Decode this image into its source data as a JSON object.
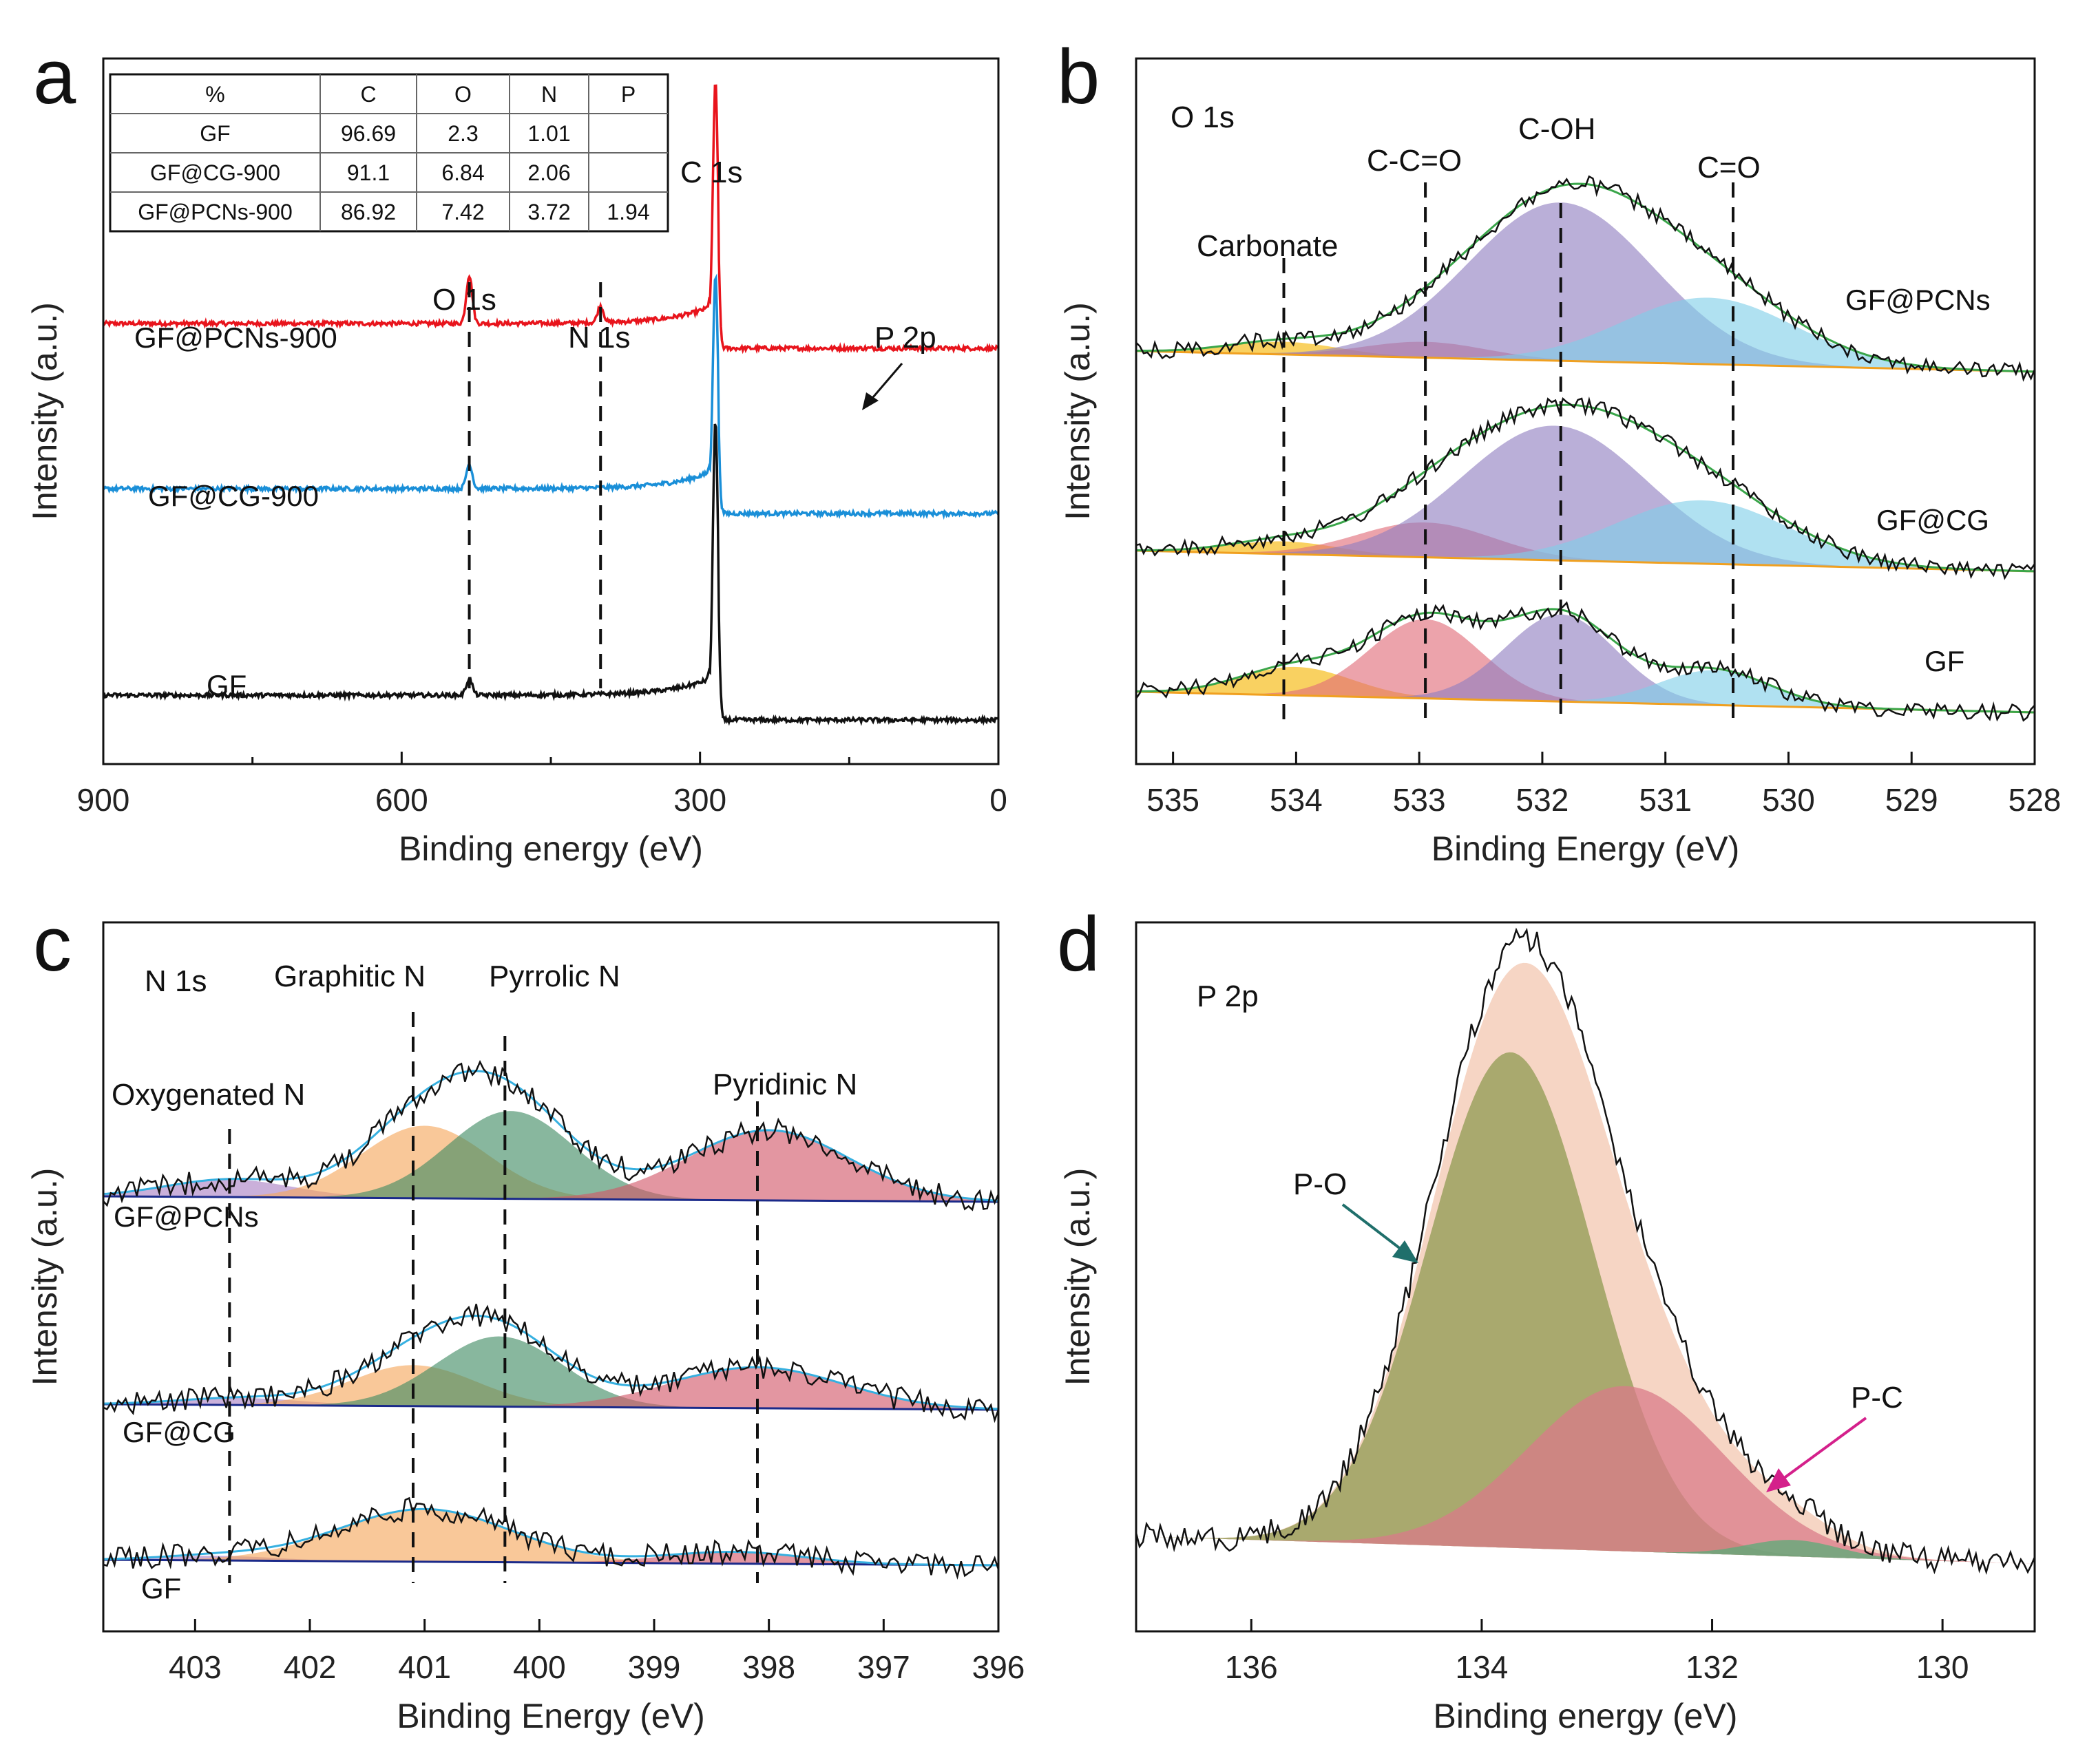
{
  "chart_data": [
    {
      "panel": "a",
      "type": "line",
      "title": "",
      "xlabel": "Binding energy (eV)",
      "ylabel": "Intensity (a.u.)",
      "xlim": [
        900,
        0
      ],
      "x_ticks": [
        "900",
        "600",
        "300",
        "0"
      ],
      "x_tick_values": [
        900,
        600,
        300,
        0
      ],
      "series": [
        {
          "name": "GF@PCNs-900",
          "color": "#e8141c",
          "baseline": 3.0,
          "peaks": [
            {
              "x": 532,
              "h": 0.35,
              "w": 3
            },
            {
              "x": 400,
              "h": 0.12,
              "w": 3
            },
            {
              "x": 284.5,
              "h": 1.75,
              "w": 2.5
            }
          ]
        },
        {
          "name": "GF@CG-900",
          "color": "#1a8fd8",
          "baseline": 1.8,
          "peaks": [
            {
              "x": 532,
              "h": 0.18,
              "w": 3
            },
            {
              "x": 284.5,
              "h": 1.55,
              "w": 2.5
            }
          ]
        },
        {
          "name": "GF",
          "color": "#111111",
          "baseline": 0.3,
          "peaks": [
            {
              "x": 532,
              "h": 0.12,
              "w": 3
            },
            {
              "x": 284.5,
              "h": 2.0,
              "w": 2.5
            }
          ]
        }
      ],
      "peak_labels": [
        "O 1s",
        "N 1s",
        "C 1s",
        "P 2p"
      ],
      "reference_lines_x": [
        532,
        400
      ],
      "table": {
        "headers": [
          "%",
          "C",
          "O",
          "N",
          "P"
        ],
        "rows": [
          [
            "GF",
            "96.69",
            "2.3",
            "1.01",
            ""
          ],
          [
            "GF@CG-900",
            "91.1",
            "6.84",
            "2.06",
            ""
          ],
          [
            "GF@PCNs-900",
            "86.92",
            "7.42",
            "3.72",
            "1.94"
          ]
        ]
      }
    },
    {
      "panel": "b",
      "type": "area",
      "title": "O 1s",
      "xlabel": "Binding Energy (eV)",
      "ylabel": "Intensity (a.u.)",
      "xlim": [
        535.3,
        528
      ],
      "x_ticks": [
        "535",
        "534",
        "533",
        "532",
        "531",
        "530",
        "529",
        "528"
      ],
      "x_tick_values": [
        535,
        534,
        533,
        532,
        531,
        530,
        529,
        528
      ],
      "components": [
        "Carbonate",
        "C-C=O",
        "C-OH",
        "C=O"
      ],
      "component_colors": [
        "#f5b400",
        "#e06a78",
        "#8f7ec0",
        "#7fcfe8"
      ],
      "reference_lines_x": [
        534.1,
        532.95,
        531.85,
        530.45
      ],
      "series": [
        {
          "name": "GF@PCNs",
          "peaks": [
            {
              "center": 534.1,
              "height": 0.08,
              "sigma": 0.45
            },
            {
              "center": 532.95,
              "height": 0.1,
              "sigma": 0.5
            },
            {
              "center": 531.85,
              "height": 1.0,
              "sigma": 0.75
            },
            {
              "center": 530.65,
              "height": 0.42,
              "sigma": 0.7
            }
          ]
        },
        {
          "name": "GF@CG",
          "peaks": [
            {
              "center": 534.1,
              "height": 0.08,
              "sigma": 0.45
            },
            {
              "center": 532.95,
              "height": 0.22,
              "sigma": 0.55
            },
            {
              "center": 531.9,
              "height": 0.85,
              "sigma": 0.75
            },
            {
              "center": 530.7,
              "height": 0.4,
              "sigma": 0.7
            }
          ]
        },
        {
          "name": "GF",
          "peaks": [
            {
              "center": 534.0,
              "height": 0.18,
              "sigma": 0.45
            },
            {
              "center": 532.95,
              "height": 0.5,
              "sigma": 0.45
            },
            {
              "center": 531.85,
              "height": 0.55,
              "sigma": 0.45
            },
            {
              "center": 530.6,
              "height": 0.22,
              "sigma": 0.45
            }
          ]
        }
      ]
    },
    {
      "panel": "c",
      "type": "area",
      "title": "N 1s",
      "xlabel": "Binding Energy (eV)",
      "ylabel": "Intensity (a.u.)",
      "xlim": [
        403.8,
        396
      ],
      "x_ticks": [
        "403",
        "402",
        "401",
        "400",
        "399",
        "398",
        "397",
        "396"
      ],
      "x_tick_values": [
        403,
        402,
        401,
        400,
        399,
        398,
        397,
        396
      ],
      "components": [
        "Oxygenated N",
        "Graphitic N",
        "Pyrrolic N",
        "Pyridinic N"
      ],
      "component_colors": [
        "#a97fc4",
        "#f5a65b",
        "#3f8a62",
        "#d25568"
      ],
      "reference_lines_x": [
        402.7,
        401.1,
        400.3,
        398.1
      ],
      "series": [
        {
          "name": "GF@PCNs",
          "peaks": [
            {
              "center": 402.7,
              "height": 0.15,
              "sigma": 0.55
            },
            {
              "center": 401.0,
              "height": 0.62,
              "sigma": 0.55
            },
            {
              "center": 400.25,
              "height": 0.75,
              "sigma": 0.55
            },
            {
              "center": 398.0,
              "height": 0.6,
              "sigma": 0.7
            }
          ]
        },
        {
          "name": "GF@CG",
          "peaks": [
            {
              "center": 402.6,
              "height": 0.06,
              "sigma": 0.55
            },
            {
              "center": 401.1,
              "height": 0.35,
              "sigma": 0.55
            },
            {
              "center": 400.35,
              "height": 0.6,
              "sigma": 0.55
            },
            {
              "center": 398.1,
              "height": 0.35,
              "sigma": 0.75
            }
          ]
        },
        {
          "name": "GF",
          "peaks": [
            {
              "center": 402.8,
              "height": 0.04,
              "sigma": 0.5
            },
            {
              "center": 401.0,
              "height": 0.45,
              "sigma": 0.75
            },
            {
              "center": 398.3,
              "height": 0.1,
              "sigma": 0.6
            }
          ]
        }
      ],
      "series_labels": [
        "GF@PCNs",
        "GF@CG",
        "GF"
      ]
    },
    {
      "panel": "d",
      "type": "area",
      "title": "P 2p",
      "xlabel": "Binding energy (eV)",
      "ylabel": "Intensity (a.u.)",
      "xlim": [
        137,
        129.2
      ],
      "x_ticks": [
        "136",
        "134",
        "132",
        "130"
      ],
      "x_tick_values": [
        136,
        134,
        132,
        130
      ],
      "components": [
        "P-O",
        "P-C"
      ],
      "component_colors": [
        "#8f9a52",
        "#d97b8a"
      ],
      "series": [
        {
          "name": "P 2p",
          "peaks": [
            {
              "center": 133.75,
              "height": 0.9,
              "sigma": 0.72
            },
            {
              "center": 132.75,
              "height": 0.3,
              "sigma": 0.85
            },
            {
              "center": 131.3,
              "height": 0.03,
              "sigma": 0.4
            }
          ]
        }
      ]
    }
  ],
  "figure": {
    "panel_letters": [
      "a",
      "b",
      "c",
      "d"
    ],
    "colors": {
      "axis": "#111111",
      "envelope_b": "#3aa64a",
      "envelope_c": "#36b0e0",
      "envelope_d": "#f3c7b0",
      "arrow_po": "#1f6f6b",
      "arrow_pc": "#d4208b",
      "raw": "#111111"
    }
  }
}
